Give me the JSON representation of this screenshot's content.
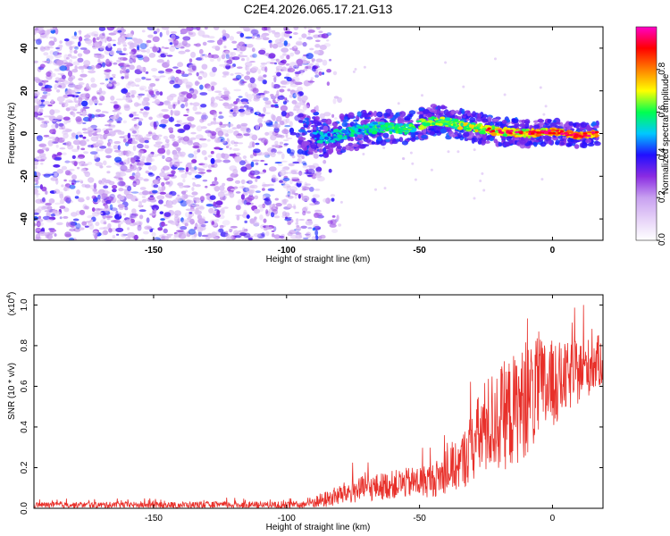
{
  "title": "C2E4.2026.065.17.21.G13",
  "chart_data": [
    {
      "type": "heatmap",
      "name": "spectrogram",
      "xlabel": "Height of straight line (km)",
      "ylabel": "Frequency (Hz)",
      "xlim": [
        -195,
        19
      ],
      "ylim": [
        -50,
        50
      ],
      "xticks": [
        -150,
        -100,
        -50,
        0
      ],
      "yticks": [
        -40,
        -20,
        0,
        20,
        40
      ],
      "colorbar": {
        "label": "Normalized spectral amplitude",
        "range": [
          0,
          1
        ],
        "ticks": [
          0.0,
          0.2,
          0.4,
          0.6,
          0.8
        ],
        "colors": [
          "#ffffff",
          "#e6d2f8",
          "#c8a0f0",
          "#8a2be2",
          "#2010ff",
          "#00c8ff",
          "#00ff50",
          "#ffff00",
          "#ff8000",
          "#ff0000",
          "#ff00c8"
        ]
      },
      "noise_region_x": [
        -195,
        -88
      ],
      "signal_track": [
        {
          "x": -95,
          "f": 0
        },
        {
          "x": -85,
          "f": -2
        },
        {
          "x": -75,
          "f": 1
        },
        {
          "x": -65,
          "f": 3
        },
        {
          "x": -55,
          "f": 2
        },
        {
          "x": -45,
          "f": 6
        },
        {
          "x": -38,
          "f": 5
        },
        {
          "x": -30,
          "f": 3
        },
        {
          "x": -20,
          "f": 1
        },
        {
          "x": -10,
          "f": 0
        },
        {
          "x": 0,
          "f": 1
        },
        {
          "x": 10,
          "f": -1
        },
        {
          "x": 17,
          "f": 0
        }
      ]
    },
    {
      "type": "line",
      "name": "snr",
      "xlabel": "Height of straight line (km)",
      "ylabel": "SNR (10 * v/v)",
      "scale_label": "(x10",
      "scale_exp": "4",
      "scale_close": ")",
      "xlim": [
        -195,
        19
      ],
      "ylim": [
        0,
        1.05
      ],
      "xticks": [
        -150,
        -100,
        -50,
        0
      ],
      "yticks": [
        0.0,
        0.2,
        0.4,
        0.6,
        0.8,
        1.0
      ],
      "color": "#e8302a",
      "envelope": [
        {
          "x": -195,
          "base": 0.015,
          "amp": 0.02
        },
        {
          "x": -95,
          "base": 0.015,
          "amp": 0.025
        },
        {
          "x": -85,
          "base": 0.04,
          "amp": 0.06
        },
        {
          "x": -75,
          "base": 0.08,
          "amp": 0.09
        },
        {
          "x": -60,
          "base": 0.11,
          "amp": 0.1
        },
        {
          "x": -45,
          "base": 0.13,
          "amp": 0.12
        },
        {
          "x": -35,
          "base": 0.2,
          "amp": 0.18
        },
        {
          "x": -25,
          "base": 0.38,
          "amp": 0.35
        },
        {
          "x": -15,
          "base": 0.45,
          "amp": 0.4
        },
        {
          "x": -5,
          "base": 0.55,
          "amp": 0.38
        },
        {
          "x": 5,
          "base": 0.62,
          "amp": 0.25
        },
        {
          "x": 19,
          "base": 0.72,
          "amp": 0.18
        }
      ]
    }
  ]
}
